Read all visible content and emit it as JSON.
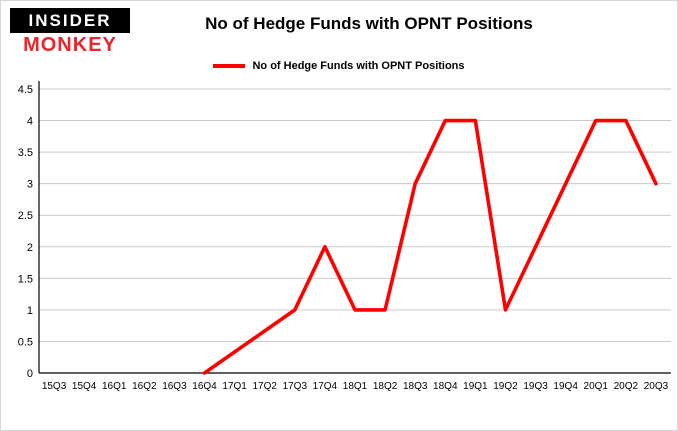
{
  "brand": {
    "line1": "INSIDER",
    "line2": "MONKEY",
    "line1_bg": "#000000",
    "line1_color": "#ffffff",
    "line2_color": "#e8262d"
  },
  "title": "No of Hedge Funds with OPNT Positions",
  "legend": {
    "label": "No of Hedge Funds with OPNT Positions",
    "color": "#ff0000"
  },
  "colors": {
    "accent": "#ff0000",
    "grid": "#c9c9c9",
    "axis": "#000000",
    "background": "#ffffff",
    "text": "#000000"
  },
  "chart_data": {
    "type": "line",
    "title": "No of Hedge Funds with OPNT Positions",
    "categories": [
      "15Q3",
      "15Q4",
      "16Q1",
      "16Q2",
      "16Q3",
      "16Q4",
      "17Q1",
      "17Q2",
      "17Q3",
      "17Q4",
      "18Q1",
      "18Q2",
      "18Q3",
      "18Q4",
      "19Q1",
      "19Q2",
      "19Q3",
      "19Q4",
      "20Q1",
      "20Q2",
      "20Q3"
    ],
    "series": [
      {
        "name": "No of Hedge Funds with OPNT Positions",
        "color": "#ff0000",
        "values": [
          null,
          null,
          null,
          null,
          null,
          0,
          null,
          null,
          1,
          2,
          1,
          1,
          3,
          4,
          4,
          1,
          2,
          3,
          4,
          4,
          3
        ]
      }
    ],
    "xlabel": "",
    "ylabel": "",
    "ylim": [
      0,
      4.5
    ],
    "ytick_step": 0.5,
    "yticks": [
      "0",
      "0.5",
      "1",
      "1.5",
      "2",
      "2.5",
      "3",
      "3.5",
      "4",
      "4.5"
    ],
    "grid": true,
    "legend_position": "top"
  }
}
